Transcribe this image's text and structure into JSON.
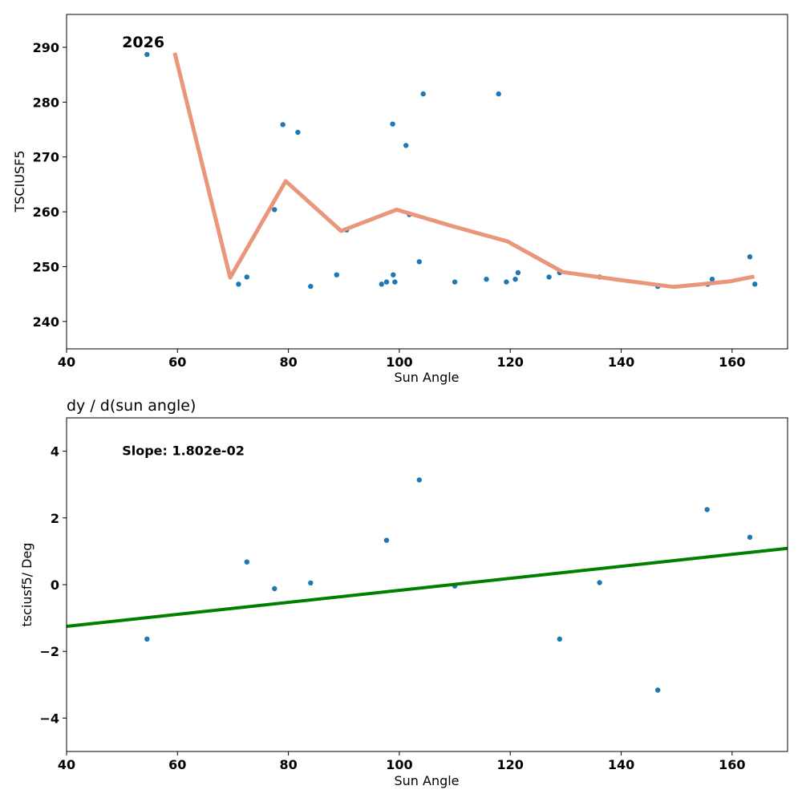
{
  "chart_data": [
    {
      "type": "scatter",
      "title": "",
      "annotation": "2026",
      "xlabel": "Sun Angle",
      "ylabel": "TSCIUSF5",
      "xlim": [
        40,
        170
      ],
      "ylim": [
        235,
        296
      ],
      "xticks": [
        40,
        60,
        80,
        100,
        120,
        140,
        160
      ],
      "yticks": [
        240,
        250,
        260,
        270,
        280,
        290
      ],
      "grid": false,
      "points": {
        "x": [
          54.5,
          71.0,
          72.5,
          77.5,
          79.0,
          81.7,
          84.0,
          88.7,
          90.5,
          96.8,
          97.7,
          98.8,
          98.9,
          99.2,
          101.2,
          101.8,
          103.6,
          104.3,
          110.0,
          115.7,
          117.9,
          119.3,
          120.9,
          121.4,
          127.0,
          128.9,
          136.1,
          146.6,
          155.6,
          156.4,
          163.2,
          164.1
        ],
        "y": [
          288.7,
          246.8,
          248.1,
          260.4,
          275.9,
          274.5,
          246.4,
          248.5,
          256.7,
          246.8,
          247.2,
          276.0,
          248.5,
          247.2,
          272.1,
          259.5,
          250.9,
          281.5,
          247.2,
          247.7,
          281.5,
          247.2,
          247.7,
          248.9,
          248.1,
          248.9,
          248.1,
          246.4,
          246.8,
          247.7,
          251.8,
          246.8
        ]
      },
      "trend": {
        "color": "#e9967a",
        "x": [
          59.5,
          69.5,
          79.5,
          89.5,
          99.5,
          109.5,
          119.5,
          129.5,
          139.5,
          149.5,
          159.5,
          164.0
        ],
        "y": [
          289.0,
          248.0,
          265.6,
          256.5,
          260.4,
          257.4,
          254.6,
          249.0,
          247.6,
          246.3,
          247.3,
          248.2
        ]
      }
    },
    {
      "type": "scatter",
      "title": "dy / d(sun angle)",
      "annotation": "Slope: 1.802e-02",
      "xlabel": "Sun Angle",
      "ylabel": "tsciusf5/ Deg",
      "xlim": [
        40,
        170
      ],
      "ylim": [
        -5,
        5
      ],
      "xticks": [
        40,
        60,
        80,
        100,
        120,
        140,
        160
      ],
      "yticks": [
        -4,
        -2,
        0,
        2,
        4
      ],
      "grid": false,
      "points": {
        "x": [
          54.5,
          72.5,
          77.5,
          84.0,
          97.7,
          103.6,
          110.0,
          128.9,
          136.1,
          146.6,
          155.5,
          163.2
        ],
        "y": [
          -1.63,
          0.68,
          -0.12,
          0.05,
          1.33,
          3.14,
          -0.04,
          -1.63,
          0.06,
          -3.16,
          2.25,
          1.42
        ]
      },
      "fit": {
        "color": "#008000",
        "slope": 0.01802,
        "x": [
          40,
          170
        ],
        "y": [
          -1.25,
          1.09
        ]
      }
    }
  ]
}
